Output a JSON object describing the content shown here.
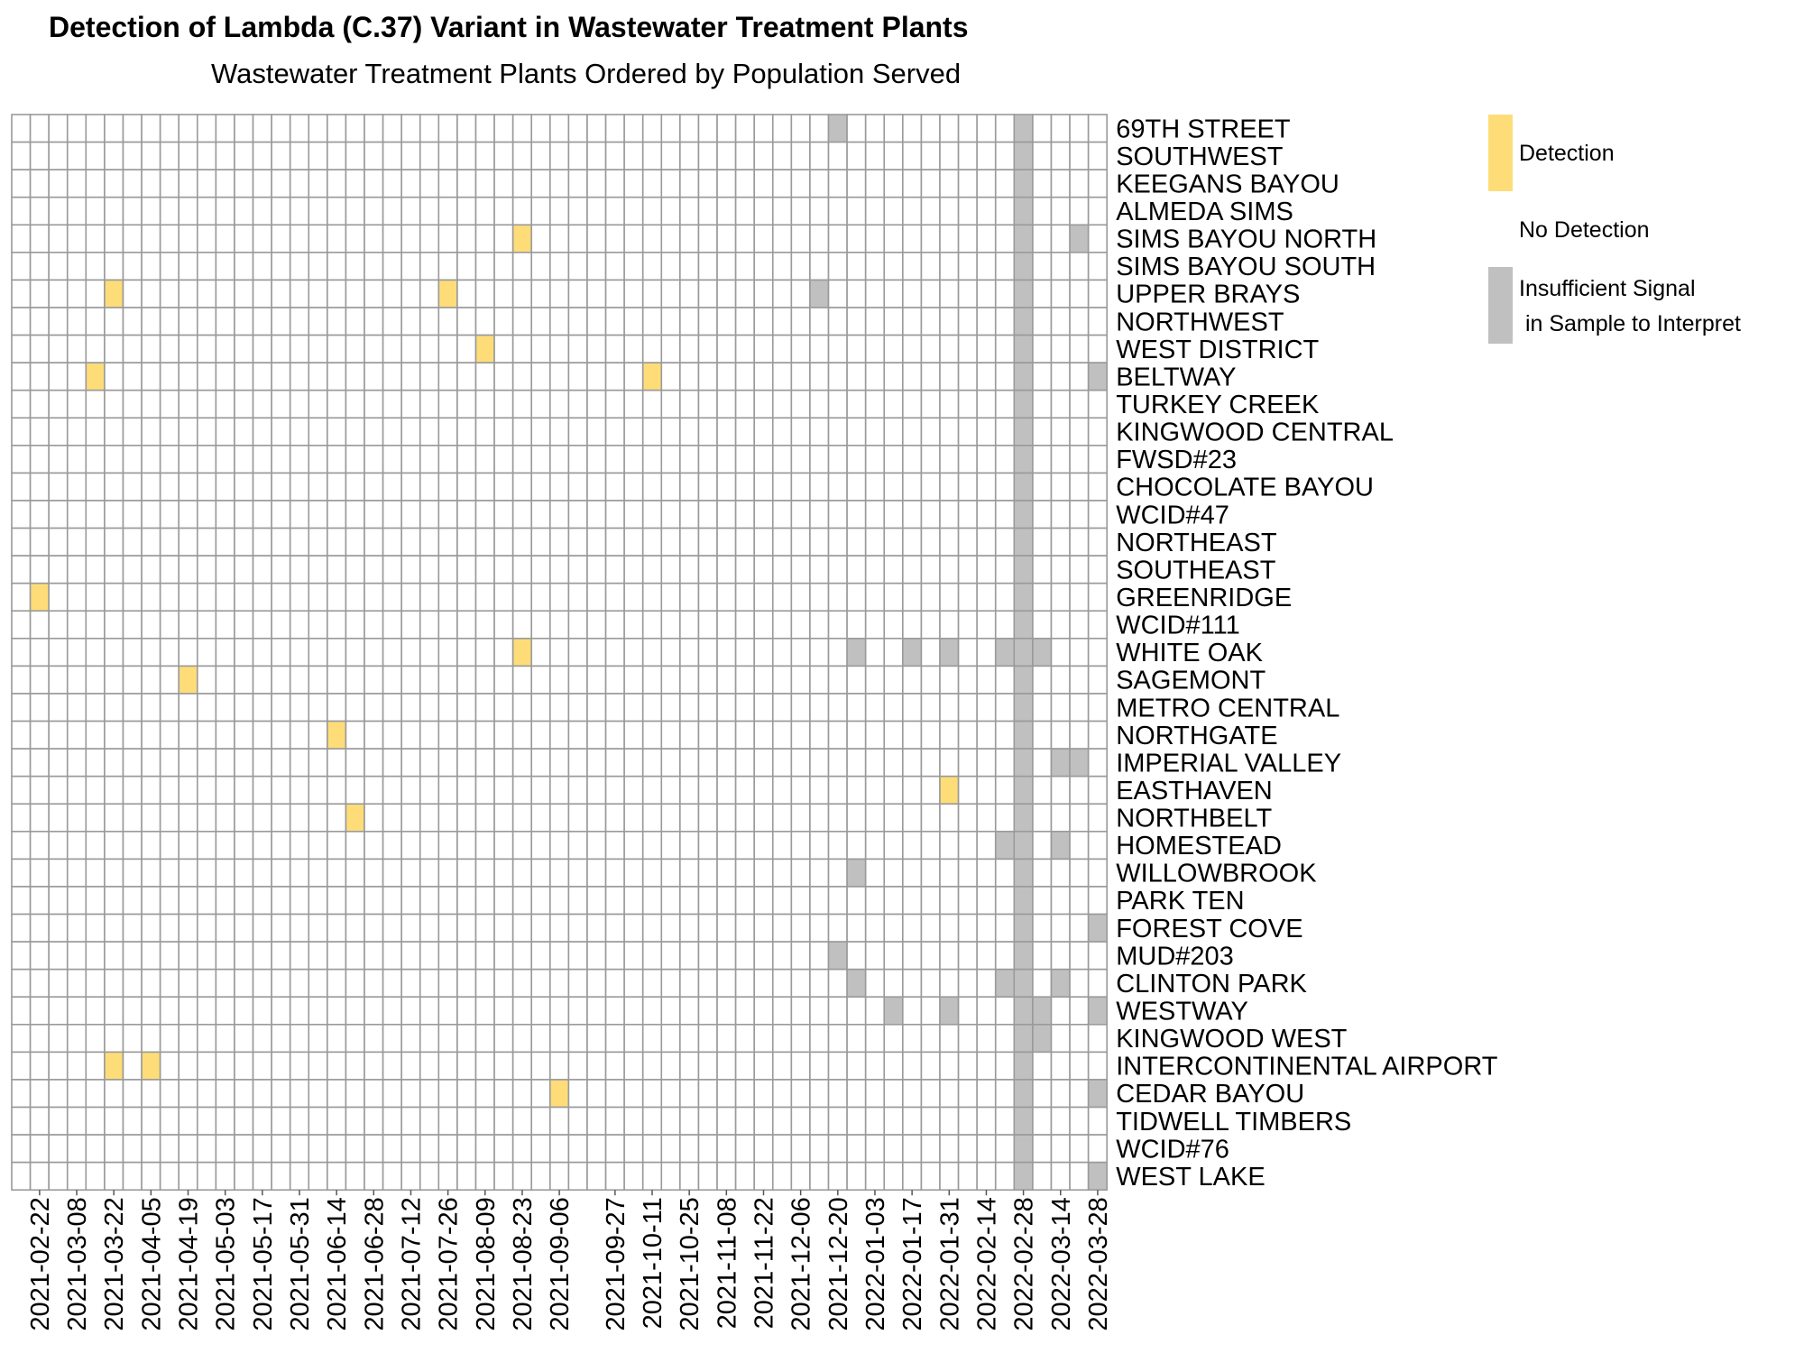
{
  "chart_data": {
    "type": "heatmap",
    "title": "Detection of Lambda (C.37) Variant in Wastewater Treatment Plants",
    "subtitle": "Wastewater Treatment Plants Ordered by Population Served",
    "x_tick_labels": [
      "2021-02-22",
      "2021-03-08",
      "2021-03-22",
      "2021-04-05",
      "2021-04-19",
      "2021-05-03",
      "2021-05-17",
      "2021-05-31",
      "2021-06-14",
      "2021-06-28",
      "2021-07-12",
      "2021-07-26",
      "2021-08-09",
      "2021-08-23",
      "2021-09-06",
      "2021-09-27",
      "2021-10-11",
      "2021-10-25",
      "2021-11-08",
      "2021-11-22",
      "2021-12-06",
      "2021-12-20",
      "2022-01-03",
      "2022-01-17",
      "2022-01-31",
      "2022-02-14",
      "2022-02-28",
      "2022-03-14",
      "2022-03-28"
    ],
    "columns": [
      "2021-02-15",
      "2021-02-22",
      "2021-03-01",
      "2021-03-08",
      "2021-03-15",
      "2021-03-22",
      "2021-03-29",
      "2021-04-05",
      "2021-04-12",
      "2021-04-19",
      "2021-04-26",
      "2021-05-03",
      "2021-05-10",
      "2021-05-17",
      "2021-05-24",
      "2021-05-31",
      "2021-06-07",
      "2021-06-14",
      "2021-06-21",
      "2021-06-28",
      "2021-07-05",
      "2021-07-12",
      "2021-07-19",
      "2021-07-26",
      "2021-08-02",
      "2021-08-09",
      "2021-08-16",
      "2021-08-23",
      "2021-08-30",
      "2021-09-06",
      "2021-09-13",
      "2021-09-20",
      "2021-09-27",
      "2021-10-04",
      "2021-10-11",
      "2021-10-18",
      "2021-10-25",
      "2021-11-01",
      "2021-11-08",
      "2021-11-15",
      "2021-11-22",
      "2021-11-29",
      "2021-12-06",
      "2021-12-13",
      "2021-12-20",
      "2021-12-27",
      "2022-01-03",
      "2022-01-10",
      "2022-01-17",
      "2022-01-24",
      "2022-01-31",
      "2022-02-07",
      "2022-02-14",
      "2022-02-21",
      "2022-02-28",
      "2022-03-07",
      "2022-03-14",
      "2022-03-21",
      "2022-03-28"
    ],
    "rows": [
      "69TH STREET",
      "SOUTHWEST",
      "KEEGANS BAYOU",
      "ALMEDA SIMS",
      "SIMS BAYOU NORTH",
      "SIMS BAYOU SOUTH",
      "UPPER BRAYS",
      "NORTHWEST",
      "WEST DISTRICT",
      "BELTWAY",
      "TURKEY CREEK",
      "KINGWOOD CENTRAL",
      "FWSD#23",
      "CHOCOLATE BAYOU",
      "WCID#47",
      "NORTHEAST",
      "SOUTHEAST",
      "GREENRIDGE",
      "WCID#111",
      "WHITE OAK",
      "SAGEMONT",
      "METRO CENTRAL",
      "NORTHGATE",
      "IMPERIAL VALLEY",
      "EASTHAVEN",
      "NORTHBELT",
      "HOMESTEAD",
      "WILLOWBROOK",
      "PARK TEN",
      "FOREST COVE",
      "MUD#203",
      "CLINTON PARK",
      "WESTWAY",
      "KINGWOOD WEST",
      "INTERCONTINENTAL AIRPORT",
      "CEDAR BAYOU",
      "TIDWELL TIMBERS",
      "WCID#76",
      "WEST LAKE"
    ],
    "default_category": "No Detection",
    "all_rows_insufficient_columns": [
      "2022-02-28"
    ],
    "detections": [
      {
        "row": "SIMS BAYOU NORTH",
        "column": "2021-08-23"
      },
      {
        "row": "UPPER BRAYS",
        "column": "2021-03-22"
      },
      {
        "row": "UPPER BRAYS",
        "column": "2021-07-26"
      },
      {
        "row": "WEST DISTRICT",
        "column": "2021-08-09"
      },
      {
        "row": "BELTWAY",
        "column": "2021-03-15"
      },
      {
        "row": "BELTWAY",
        "column": "2021-10-11"
      },
      {
        "row": "GREENRIDGE",
        "column": "2021-02-22"
      },
      {
        "row": "WHITE OAK",
        "column": "2021-08-23"
      },
      {
        "row": "SAGEMONT",
        "column": "2021-04-19"
      },
      {
        "row": "NORTHGATE",
        "column": "2021-06-14"
      },
      {
        "row": "EASTHAVEN",
        "column": "2022-01-31"
      },
      {
        "row": "NORTHBELT",
        "column": "2021-06-21"
      },
      {
        "row": "INTERCONTINENTAL AIRPORT",
        "column": "2021-03-22"
      },
      {
        "row": "INTERCONTINENTAL AIRPORT",
        "column": "2021-04-05"
      },
      {
        "row": "CEDAR BAYOU",
        "column": "2021-09-06"
      }
    ],
    "insufficient": [
      {
        "row": "69TH STREET",
        "column": "2021-12-20"
      },
      {
        "row": "SIMS BAYOU NORTH",
        "column": "2022-03-21"
      },
      {
        "row": "UPPER BRAYS",
        "column": "2021-12-13"
      },
      {
        "row": "BELTWAY",
        "column": "2022-03-28"
      },
      {
        "row": "WHITE OAK",
        "column": "2021-12-27"
      },
      {
        "row": "WHITE OAK",
        "column": "2022-01-17"
      },
      {
        "row": "WHITE OAK",
        "column": "2022-01-31"
      },
      {
        "row": "WHITE OAK",
        "column": "2022-02-21"
      },
      {
        "row": "WHITE OAK",
        "column": "2022-03-07"
      },
      {
        "row": "IMPERIAL VALLEY",
        "column": "2022-03-14"
      },
      {
        "row": "IMPERIAL VALLEY",
        "column": "2022-03-21"
      },
      {
        "row": "HOMESTEAD",
        "column": "2022-02-21"
      },
      {
        "row": "HOMESTEAD",
        "column": "2022-03-14"
      },
      {
        "row": "WILLOWBROOK",
        "column": "2021-12-27"
      },
      {
        "row": "FOREST COVE",
        "column": "2022-03-28"
      },
      {
        "row": "MUD#203",
        "column": "2021-12-20"
      },
      {
        "row": "CLINTON PARK",
        "column": "2021-12-27"
      },
      {
        "row": "CLINTON PARK",
        "column": "2022-02-21"
      },
      {
        "row": "CLINTON PARK",
        "column": "2022-03-14"
      },
      {
        "row": "WESTWAY",
        "column": "2022-01-10"
      },
      {
        "row": "WESTWAY",
        "column": "2022-01-31"
      },
      {
        "row": "WESTWAY",
        "column": "2022-03-07"
      },
      {
        "row": "WESTWAY",
        "column": "2022-03-28"
      },
      {
        "row": "KINGWOOD WEST",
        "column": "2022-03-07"
      },
      {
        "row": "CEDAR BAYOU",
        "column": "2022-03-28"
      },
      {
        "row": "WEST LAKE",
        "column": "2022-03-28"
      }
    ],
    "legend": [
      {
        "label": "Detection",
        "color": "#FEDD78"
      },
      {
        "label": "No Detection",
        "color": "#FFFFFF"
      },
      {
        "label": "Insufficient Signal",
        "label2": " in Sample to Interpret",
        "color": "#C0C0C0"
      }
    ],
    "legend_placement": "right",
    "colors": {
      "detection": "#FEDD78",
      "no_detection": "#FFFFFF",
      "insufficient": "#C0C0C0",
      "grid": "#9A9A9A"
    }
  }
}
